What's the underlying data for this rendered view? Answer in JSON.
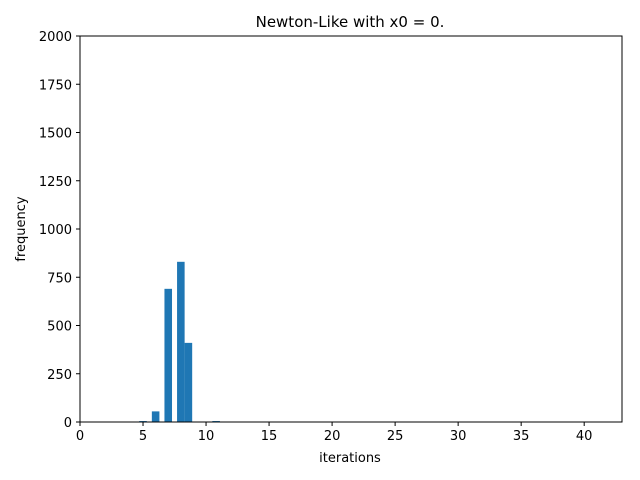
{
  "chart_data": {
    "type": "bar",
    "title": "Newton-Like with x0 = 0.",
    "xlabel": "iterations",
    "ylabel": "frequency",
    "xlim": [
      0,
      43
    ],
    "ylim": [
      0,
      2000
    ],
    "xticks": [
      0,
      5,
      10,
      15,
      20,
      25,
      30,
      35,
      40
    ],
    "yticks": [
      0,
      250,
      500,
      750,
      1000,
      1250,
      1500,
      1750,
      2000
    ],
    "bar_width": 0.6,
    "bars": [
      {
        "x": 5,
        "value": 5
      },
      {
        "x": 6,
        "value": 55
      },
      {
        "x": 7,
        "value": 690
      },
      {
        "x": 8,
        "value": 830
      },
      {
        "x": 8.6,
        "value": 410
      },
      {
        "x": 10.8,
        "value": 5
      }
    ],
    "color": "#1f77b4",
    "grid": false
  }
}
